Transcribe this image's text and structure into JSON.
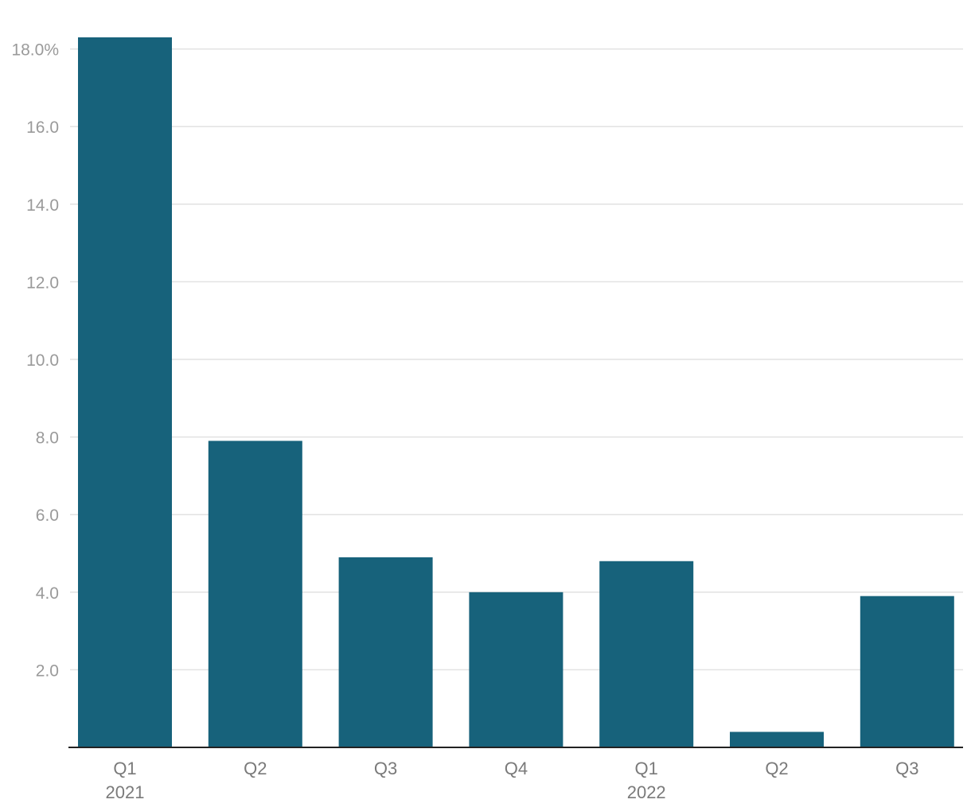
{
  "chart_data": {
    "type": "bar",
    "categories": [
      "Q1",
      "Q2",
      "Q3",
      "Q4",
      "Q1",
      "Q2",
      "Q3"
    ],
    "groups": [
      {
        "label": "2021",
        "start_index": 0
      },
      {
        "label": "2022",
        "start_index": 4
      }
    ],
    "values": [
      18.3,
      7.9,
      4.9,
      4.0,
      4.8,
      0.4,
      3.9
    ],
    "y_ticks": [
      2.0,
      4.0,
      6.0,
      8.0,
      10.0,
      12.0,
      14.0,
      16.0,
      18.0
    ],
    "y_tick_labels": [
      "2.0",
      "4.0",
      "6.0",
      "8.0",
      "10.0",
      "12.0",
      "14.0",
      "16.0",
      "18.0%"
    ],
    "ylim": [
      0,
      18.3
    ],
    "grid": true,
    "colors": {
      "bar": "#17627b"
    }
  }
}
